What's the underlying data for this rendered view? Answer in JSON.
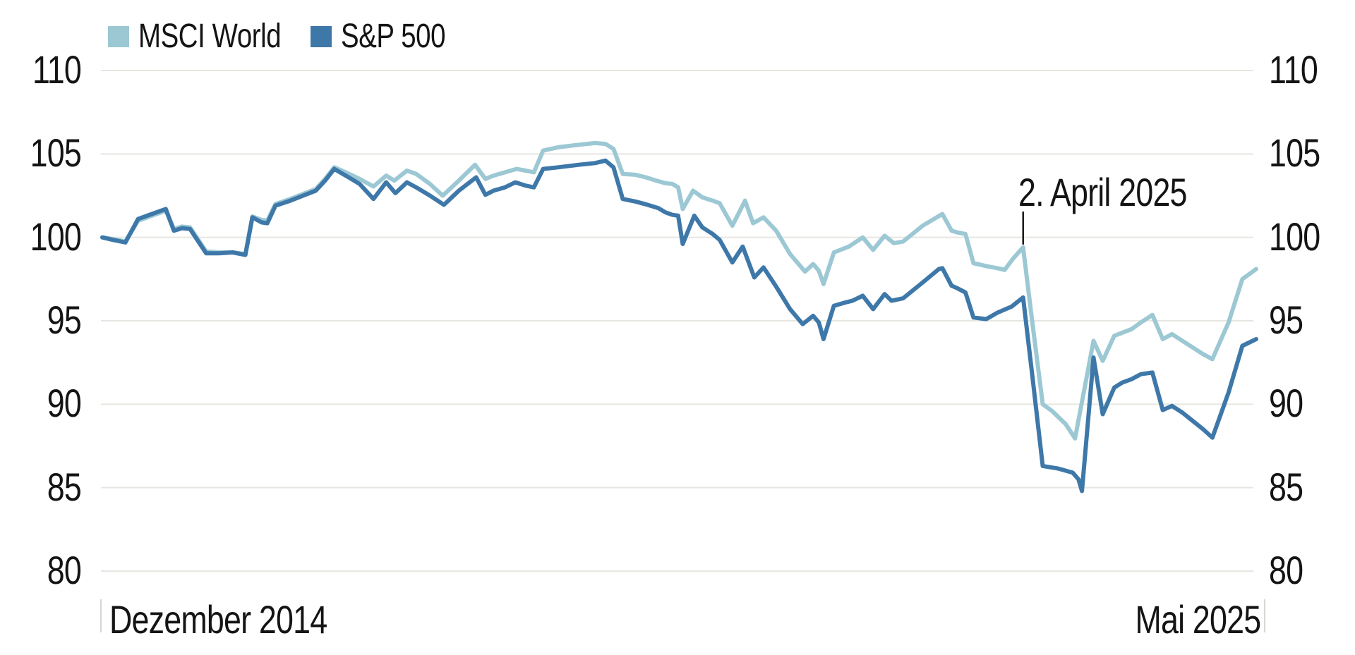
{
  "chart_data": {
    "type": "line",
    "title": "",
    "grid": true,
    "legend_position": "top-left",
    "legend": [
      {
        "label": "MSCI World",
        "color": "#9cc8d4"
      },
      {
        "label": "S&P 500",
        "color": "#3e78a9"
      }
    ],
    "x_axis": {
      "start_label": "Dezember 2014",
      "end_label": "Mai 2025"
    },
    "y_axis": {
      "range": [
        80,
        110
      ],
      "ticks": [
        80,
        85,
        90,
        95,
        100,
        105,
        110
      ],
      "sides": "both"
    },
    "annotation": {
      "label": "2. April 2025",
      "x": 0.798,
      "value": 99.4
    },
    "style": {
      "background": "#ffffff",
      "grid_color": "#e8e6e1",
      "axis_tick_color": "#d9d6d1",
      "text_color": "#141414",
      "annotation_line_color": "#1a1a1a"
    },
    "series": [
      {
        "name": "MSCI World",
        "color": "#9cc8d4",
        "points": [
          [
            0.0,
            100.0
          ],
          [
            0.009,
            99.9
          ],
          [
            0.02,
            99.75
          ],
          [
            0.031,
            101.0
          ],
          [
            0.043,
            101.3
          ],
          [
            0.055,
            101.6
          ],
          [
            0.062,
            100.5
          ],
          [
            0.069,
            100.65
          ],
          [
            0.076,
            100.6
          ],
          [
            0.09,
            99.15
          ],
          [
            0.101,
            99.1
          ],
          [
            0.113,
            99.1
          ],
          [
            0.124,
            99.0
          ],
          [
            0.13,
            101.25
          ],
          [
            0.138,
            101.05
          ],
          [
            0.143,
            101.0
          ],
          [
            0.15,
            102.0
          ],
          [
            0.163,
            102.3
          ],
          [
            0.174,
            102.6
          ],
          [
            0.185,
            102.9
          ],
          [
            0.193,
            103.5
          ],
          [
            0.201,
            104.2
          ],
          [
            0.211,
            103.9
          ],
          [
            0.223,
            103.5
          ],
          [
            0.235,
            103.05
          ],
          [
            0.246,
            103.7
          ],
          [
            0.253,
            103.4
          ],
          [
            0.264,
            104.0
          ],
          [
            0.272,
            103.8
          ],
          [
            0.284,
            103.2
          ],
          [
            0.295,
            102.5
          ],
          [
            0.309,
            103.4
          ],
          [
            0.323,
            104.35
          ],
          [
            0.332,
            103.5
          ],
          [
            0.339,
            103.7
          ],
          [
            0.349,
            103.9
          ],
          [
            0.359,
            104.1
          ],
          [
            0.367,
            104.0
          ],
          [
            0.374,
            103.9
          ],
          [
            0.382,
            105.2
          ],
          [
            0.395,
            105.4
          ],
          [
            0.413,
            105.55
          ],
          [
            0.427,
            105.65
          ],
          [
            0.436,
            105.6
          ],
          [
            0.443,
            105.3
          ],
          [
            0.451,
            103.8
          ],
          [
            0.462,
            103.75
          ],
          [
            0.471,
            103.6
          ],
          [
            0.48,
            103.4
          ],
          [
            0.488,
            103.25
          ],
          [
            0.494,
            103.2
          ],
          [
            0.499,
            103.0
          ],
          [
            0.503,
            101.7
          ],
          [
            0.512,
            102.8
          ],
          [
            0.52,
            102.4
          ],
          [
            0.529,
            102.2
          ],
          [
            0.535,
            102.05
          ],
          [
            0.546,
            100.7
          ],
          [
            0.557,
            102.2
          ],
          [
            0.564,
            100.85
          ],
          [
            0.573,
            101.2
          ],
          [
            0.584,
            100.4
          ],
          [
            0.596,
            99.0
          ],
          [
            0.609,
            97.95
          ],
          [
            0.616,
            98.4
          ],
          [
            0.621,
            98.0
          ],
          [
            0.625,
            97.2
          ],
          [
            0.634,
            99.1
          ],
          [
            0.647,
            99.45
          ],
          [
            0.659,
            100.0
          ],
          [
            0.668,
            99.25
          ],
          [
            0.678,
            100.1
          ],
          [
            0.686,
            99.65
          ],
          [
            0.694,
            99.75
          ],
          [
            0.711,
            100.7
          ],
          [
            0.728,
            101.4
          ],
          [
            0.736,
            100.4
          ],
          [
            0.741,
            100.3
          ],
          [
            0.748,
            100.2
          ],
          [
            0.755,
            98.45
          ],
          [
            0.768,
            98.25
          ],
          [
            0.776,
            98.15
          ],
          [
            0.782,
            98.05
          ],
          [
            0.789,
            98.7
          ],
          [
            0.798,
            99.4
          ],
          [
            0.806,
            94.9
          ],
          [
            0.815,
            90.0
          ],
          [
            0.823,
            89.6
          ],
          [
            0.835,
            88.8
          ],
          [
            0.843,
            87.95
          ],
          [
            0.859,
            93.8
          ],
          [
            0.867,
            92.6
          ],
          [
            0.877,
            94.1
          ],
          [
            0.892,
            94.5
          ],
          [
            0.9,
            94.9
          ],
          [
            0.91,
            95.35
          ],
          [
            0.919,
            93.9
          ],
          [
            0.927,
            94.2
          ],
          [
            0.936,
            93.8
          ],
          [
            0.945,
            93.4
          ],
          [
            0.954,
            93.0
          ],
          [
            0.962,
            92.7
          ],
          [
            0.976,
            94.9
          ],
          [
            0.988,
            97.5
          ],
          [
            1.0,
            98.1
          ]
        ]
      },
      {
        "name": "S&P 500",
        "color": "#3e78a9",
        "points": [
          [
            0.0,
            100.0
          ],
          [
            0.009,
            99.85
          ],
          [
            0.02,
            99.7
          ],
          [
            0.031,
            101.1
          ],
          [
            0.043,
            101.4
          ],
          [
            0.055,
            101.7
          ],
          [
            0.062,
            100.4
          ],
          [
            0.069,
            100.55
          ],
          [
            0.076,
            100.5
          ],
          [
            0.09,
            99.05
          ],
          [
            0.101,
            99.05
          ],
          [
            0.113,
            99.1
          ],
          [
            0.124,
            98.95
          ],
          [
            0.13,
            101.2
          ],
          [
            0.138,
            100.9
          ],
          [
            0.143,
            100.85
          ],
          [
            0.15,
            101.9
          ],
          [
            0.163,
            102.2
          ],
          [
            0.174,
            102.5
          ],
          [
            0.185,
            102.8
          ],
          [
            0.193,
            103.4
          ],
          [
            0.201,
            104.1
          ],
          [
            0.211,
            103.7
          ],
          [
            0.223,
            103.2
          ],
          [
            0.235,
            102.3
          ],
          [
            0.246,
            103.3
          ],
          [
            0.254,
            102.65
          ],
          [
            0.264,
            103.3
          ],
          [
            0.272,
            103.0
          ],
          [
            0.284,
            102.5
          ],
          [
            0.296,
            101.95
          ],
          [
            0.309,
            102.8
          ],
          [
            0.324,
            103.6
          ],
          [
            0.332,
            102.55
          ],
          [
            0.339,
            102.8
          ],
          [
            0.349,
            103.0
          ],
          [
            0.358,
            103.3
          ],
          [
            0.367,
            103.1
          ],
          [
            0.374,
            103.0
          ],
          [
            0.382,
            104.1
          ],
          [
            0.395,
            104.2
          ],
          [
            0.413,
            104.35
          ],
          [
            0.427,
            104.45
          ],
          [
            0.436,
            104.6
          ],
          [
            0.443,
            104.2
          ],
          [
            0.451,
            102.3
          ],
          [
            0.462,
            102.15
          ],
          [
            0.47,
            102.0
          ],
          [
            0.482,
            101.75
          ],
          [
            0.488,
            101.5
          ],
          [
            0.494,
            101.35
          ],
          [
            0.499,
            101.3
          ],
          [
            0.503,
            99.6
          ],
          [
            0.513,
            101.3
          ],
          [
            0.52,
            100.6
          ],
          [
            0.529,
            100.2
          ],
          [
            0.535,
            99.85
          ],
          [
            0.546,
            98.5
          ],
          [
            0.555,
            99.45
          ],
          [
            0.565,
            97.6
          ],
          [
            0.573,
            98.2
          ],
          [
            0.584,
            97.05
          ],
          [
            0.596,
            95.7
          ],
          [
            0.607,
            94.8
          ],
          [
            0.616,
            95.3
          ],
          [
            0.621,
            94.9
          ],
          [
            0.625,
            93.9
          ],
          [
            0.634,
            95.9
          ],
          [
            0.644,
            96.1
          ],
          [
            0.65,
            96.2
          ],
          [
            0.659,
            96.5
          ],
          [
            0.668,
            95.7
          ],
          [
            0.678,
            96.6
          ],
          [
            0.684,
            96.2
          ],
          [
            0.694,
            96.35
          ],
          [
            0.711,
            97.3
          ],
          [
            0.725,
            98.1
          ],
          [
            0.728,
            98.15
          ],
          [
            0.736,
            97.1
          ],
          [
            0.741,
            96.95
          ],
          [
            0.748,
            96.7
          ],
          [
            0.755,
            95.2
          ],
          [
            0.766,
            95.1
          ],
          [
            0.776,
            95.5
          ],
          [
            0.788,
            95.85
          ],
          [
            0.798,
            96.4
          ],
          [
            0.806,
            91.7
          ],
          [
            0.815,
            86.3
          ],
          [
            0.828,
            86.15
          ],
          [
            0.841,
            85.9
          ],
          [
            0.846,
            85.5
          ],
          [
            0.849,
            84.8
          ],
          [
            0.859,
            92.8
          ],
          [
            0.867,
            89.4
          ],
          [
            0.877,
            91.0
          ],
          [
            0.884,
            91.3
          ],
          [
            0.892,
            91.5
          ],
          [
            0.9,
            91.8
          ],
          [
            0.91,
            91.9
          ],
          [
            0.919,
            89.65
          ],
          [
            0.927,
            89.9
          ],
          [
            0.936,
            89.5
          ],
          [
            0.945,
            89.0
          ],
          [
            0.954,
            88.5
          ],
          [
            0.962,
            88.0
          ],
          [
            0.976,
            90.7
          ],
          [
            0.988,
            93.5
          ],
          [
            1.0,
            93.9
          ]
        ]
      }
    ]
  }
}
